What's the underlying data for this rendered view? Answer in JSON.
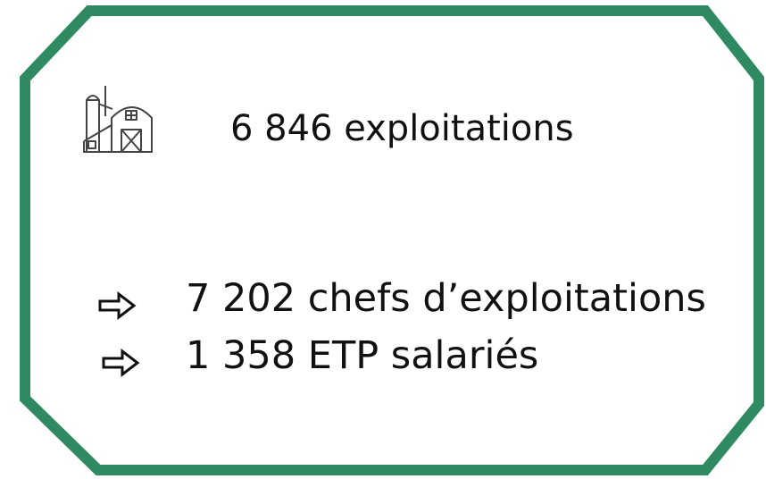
{
  "stats": {
    "farms": "6 846 exploitations",
    "items": [
      "7 202 chefs d’exploitations",
      "1 358 ETP salariés"
    ]
  }
}
